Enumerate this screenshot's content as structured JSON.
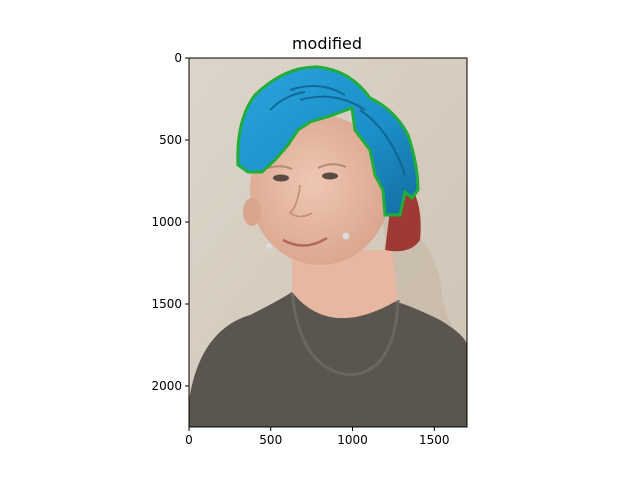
{
  "chart_data": {
    "type": "image",
    "title": "modified",
    "xlabel": "",
    "ylabel": "",
    "xlim": [
      0,
      1700
    ],
    "ylim": [
      2250,
      0
    ],
    "x_ticks": [
      0,
      500,
      1000,
      1500
    ],
    "y_ticks": [
      0,
      500,
      1000,
      1500,
      2000
    ],
    "x_tick_labels": [
      "0",
      "500",
      "1000",
      "1500"
    ],
    "y_tick_labels": [
      "0",
      "500",
      "1000",
      "1500",
      "2000"
    ],
    "grid": false,
    "image_content": "portrait photo with hair recolored blue",
    "colors": {
      "background_wall": "#d8cfc2",
      "skin": "#e2b59f",
      "hair_blue": "#1b8fc8",
      "hair_outline_green": "#1fae3a",
      "hair_red": "#9e3a33",
      "shirt": "#5a554f"
    }
  }
}
